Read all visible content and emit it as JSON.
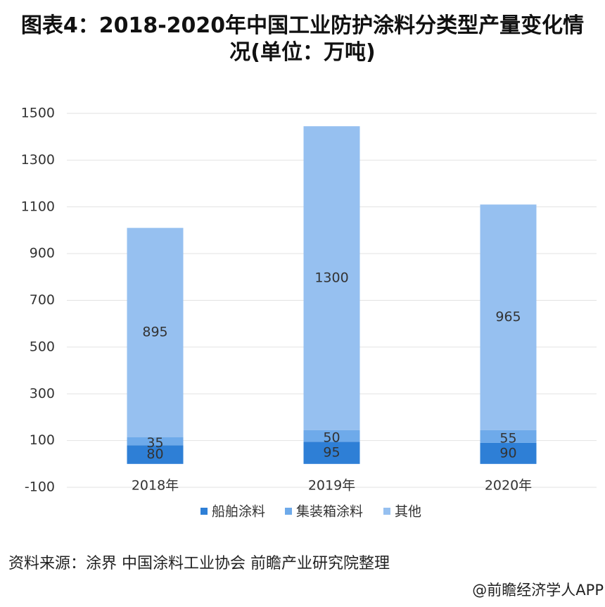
{
  "chart_data": {
    "type": "stacked_bar",
    "title": "图表4：2018-2020年中国工业防护涂料分类型产量变化情况(单位：万吨)",
    "categories": [
      "2018年",
      "2019年",
      "2020年"
    ],
    "series": [
      {
        "name": "船舶涂料",
        "color": "#2e7fd6",
        "values": [
          80,
          95,
          90
        ]
      },
      {
        "name": "集装箱涂料",
        "color": "#6eaaea",
        "values": [
          35,
          50,
          55
        ]
      },
      {
        "name": "其他",
        "color": "#96c0f0",
        "values": [
          895,
          1300,
          965
        ]
      }
    ],
    "ylim": [
      -100,
      1500
    ],
    "yticks": [
      -100,
      100,
      300,
      500,
      700,
      900,
      1100,
      1300,
      1500
    ],
    "grid": true,
    "legend": "bottom",
    "source": "资料来源：涂界 中国涂料工业协会 前瞻产业研究院整理",
    "credit": "@前瞻经济学人APP"
  }
}
